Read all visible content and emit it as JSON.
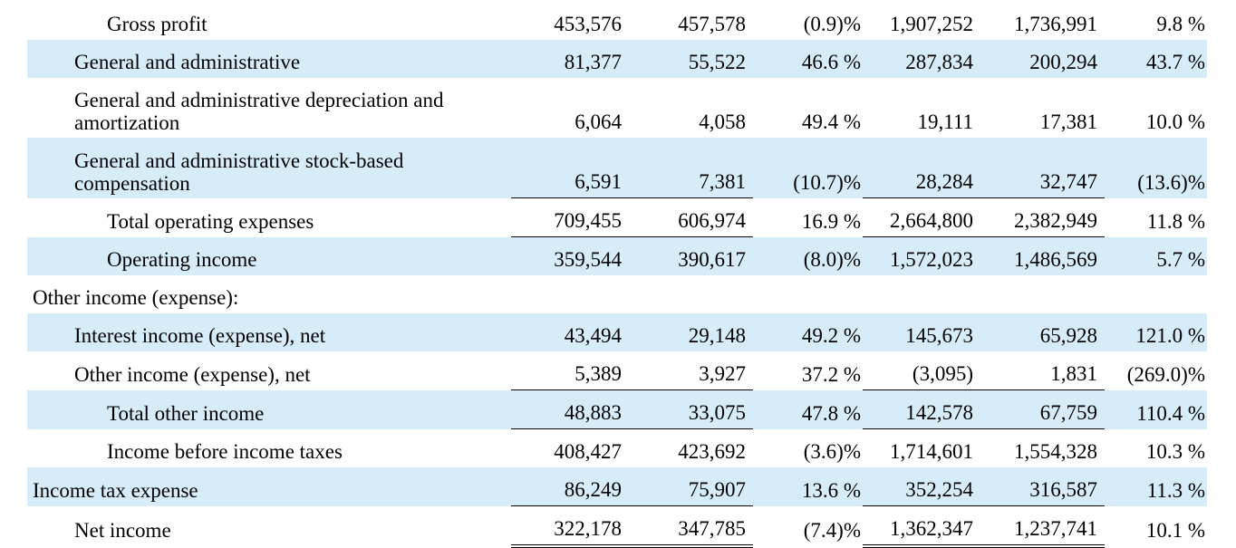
{
  "rows": [
    {
      "label": "Gross profit",
      "indent": 2,
      "shaded": false,
      "values": [
        "453,576",
        "457,578",
        "(0.9)%",
        "1,907,252",
        "1,736,991",
        "9.8 %"
      ]
    },
    {
      "label": "General and administrative",
      "indent": 1,
      "shaded": true,
      "values": [
        "81,377",
        "55,522",
        "46.6 %",
        "287,834",
        "200,294",
        "43.7 %"
      ]
    },
    {
      "label": "General and administrative depreciation and amortization",
      "indent": 1,
      "shaded": false,
      "tall": true,
      "values": [
        "6,064",
        "4,058",
        "49.4 %",
        "19,111",
        "17,381",
        "10.0 %"
      ]
    },
    {
      "label": "General and administrative stock-based compensation",
      "indent": 1,
      "shaded": true,
      "tall": true,
      "values": [
        "6,591",
        "7,381",
        "(10.7)%",
        "28,284",
        "32,747",
        "(13.6)%"
      ]
    },
    {
      "label": "Total operating expenses",
      "indent": 2,
      "shaded": false,
      "top_border": true,
      "values": [
        "709,455",
        "606,974",
        "16.9 %",
        "2,664,800",
        "2,382,949",
        "11.8 %"
      ]
    },
    {
      "label": "Operating income",
      "indent": 2,
      "shaded": true,
      "top_border": true,
      "values": [
        "359,544",
        "390,617",
        "(8.0)%",
        "1,572,023",
        "1,486,569",
        "5.7 %"
      ]
    },
    {
      "label": "Other income (expense):",
      "indent": 0,
      "shaded": false,
      "values": [
        "",
        "",
        "",
        "",
        "",
        ""
      ]
    },
    {
      "label": "Interest income (expense), net",
      "indent": 1,
      "shaded": true,
      "values": [
        "43,494",
        "29,148",
        "49.2 %",
        "145,673",
        "65,928",
        "121.0 %"
      ]
    },
    {
      "label": "Other income (expense), net",
      "indent": 1,
      "shaded": false,
      "values": [
        "5,389",
        "3,927",
        "37.2 %",
        "(3,095)",
        "1,831",
        "(269.0)%"
      ]
    },
    {
      "label": "Total other income",
      "indent": 2,
      "shaded": true,
      "top_border": true,
      "values": [
        "48,883",
        "33,075",
        "47.8 %",
        "142,578",
        "67,759",
        "110.4 %"
      ]
    },
    {
      "label": "Income before income taxes",
      "indent": 2,
      "shaded": false,
      "top_border": true,
      "values": [
        "408,427",
        "423,692",
        "(3.6)%",
        "1,714,601",
        "1,554,328",
        "10.3 %"
      ]
    },
    {
      "label": "Income tax expense",
      "indent": 0,
      "shaded": true,
      "values": [
        "86,249",
        "75,907",
        "13.6 %",
        "352,254",
        "316,587",
        "11.3 %"
      ]
    },
    {
      "label": "Net income",
      "indent": 1,
      "shaded": false,
      "top_border": true,
      "double_bottom": true,
      "values": [
        "322,178",
        "347,785",
        "(7.4)%",
        "1,362,347",
        "1,237,741",
        "10.1 %"
      ]
    }
  ]
}
